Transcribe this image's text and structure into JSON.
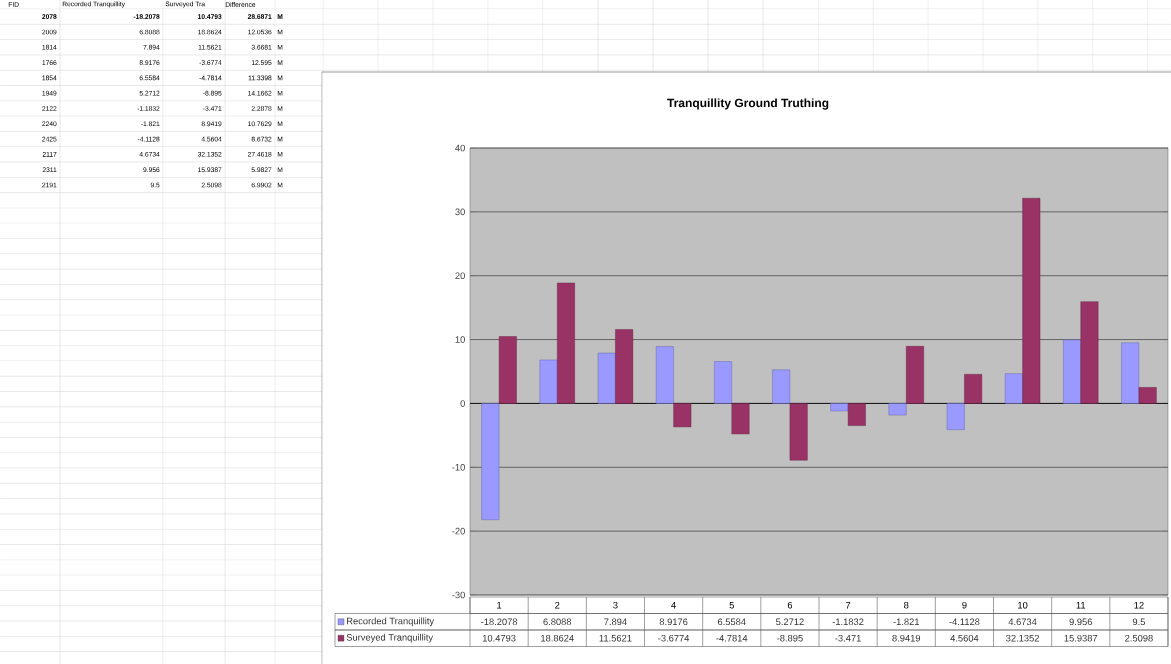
{
  "chart_data": [
    {
      "type": "other",
      "annotations": [
        "FID",
        "Recorded Tranquillity",
        "Surveyed Tra",
        "Difference",
        "2078",
        "-18.2078",
        "10.4793",
        "28.6871",
        "M",
        "2009",
        "6.8088",
        "18.8624",
        "12.0536",
        "M",
        "1814",
        "7.894",
        "11.5621",
        "3.6681",
        "M",
        "1766",
        "8.9176",
        "-3.6774",
        "12.595",
        "M",
        "1854",
        "6.5584",
        "-4.7814",
        "11.3398",
        "M",
        "1949",
        "5.2712",
        "-8.895",
        "14.1662",
        "M",
        "2122",
        "-1.1832",
        "-3.471",
        "2.2878",
        "M",
        "2240",
        "-1.821",
        "8.9419",
        "10.7629",
        "M",
        "2425",
        "-4.1128",
        "4.5604",
        "8.6732",
        "M",
        "2117",
        "4.6734",
        "32.1352",
        "27.4618",
        "M",
        "2311",
        "9.956",
        "15.9387",
        "5.9827",
        "M",
        "2191",
        "9.5",
        "2.5098",
        "6.9902",
        "M"
      ]
    },
    {
      "type": "bar",
      "title": "Tranquillity Ground Truthing",
      "categories": [
        "1",
        "2",
        "3",
        "4",
        "5",
        "6",
        "7",
        "8",
        "9",
        "10",
        "11",
        "12"
      ],
      "series": [
        {
          "name": "Recorded Tranquillity",
          "color": "#9999ff",
          "values": [
            -18.2078,
            6.8088,
            7.894,
            8.9176,
            6.5584,
            5.2712,
            -1.1832,
            -1.821,
            -4.1128,
            4.6734,
            9.956,
            9.5
          ]
        },
        {
          "name": "Surveyed Tranquillity",
          "color": "#993366",
          "values": [
            10.4793,
            18.8624,
            11.5621,
            -3.6774,
            -4.7814,
            -8.895,
            -3.471,
            8.9419,
            4.5604,
            32.1352,
            15.9387,
            2.5098
          ]
        }
      ],
      "ylim": [
        -30,
        40
      ],
      "yticks": [
        -30,
        -20,
        -10,
        0,
        10,
        20,
        30,
        40
      ],
      "grid": "y",
      "legend": "bottom",
      "data_labels": true
    }
  ]
}
